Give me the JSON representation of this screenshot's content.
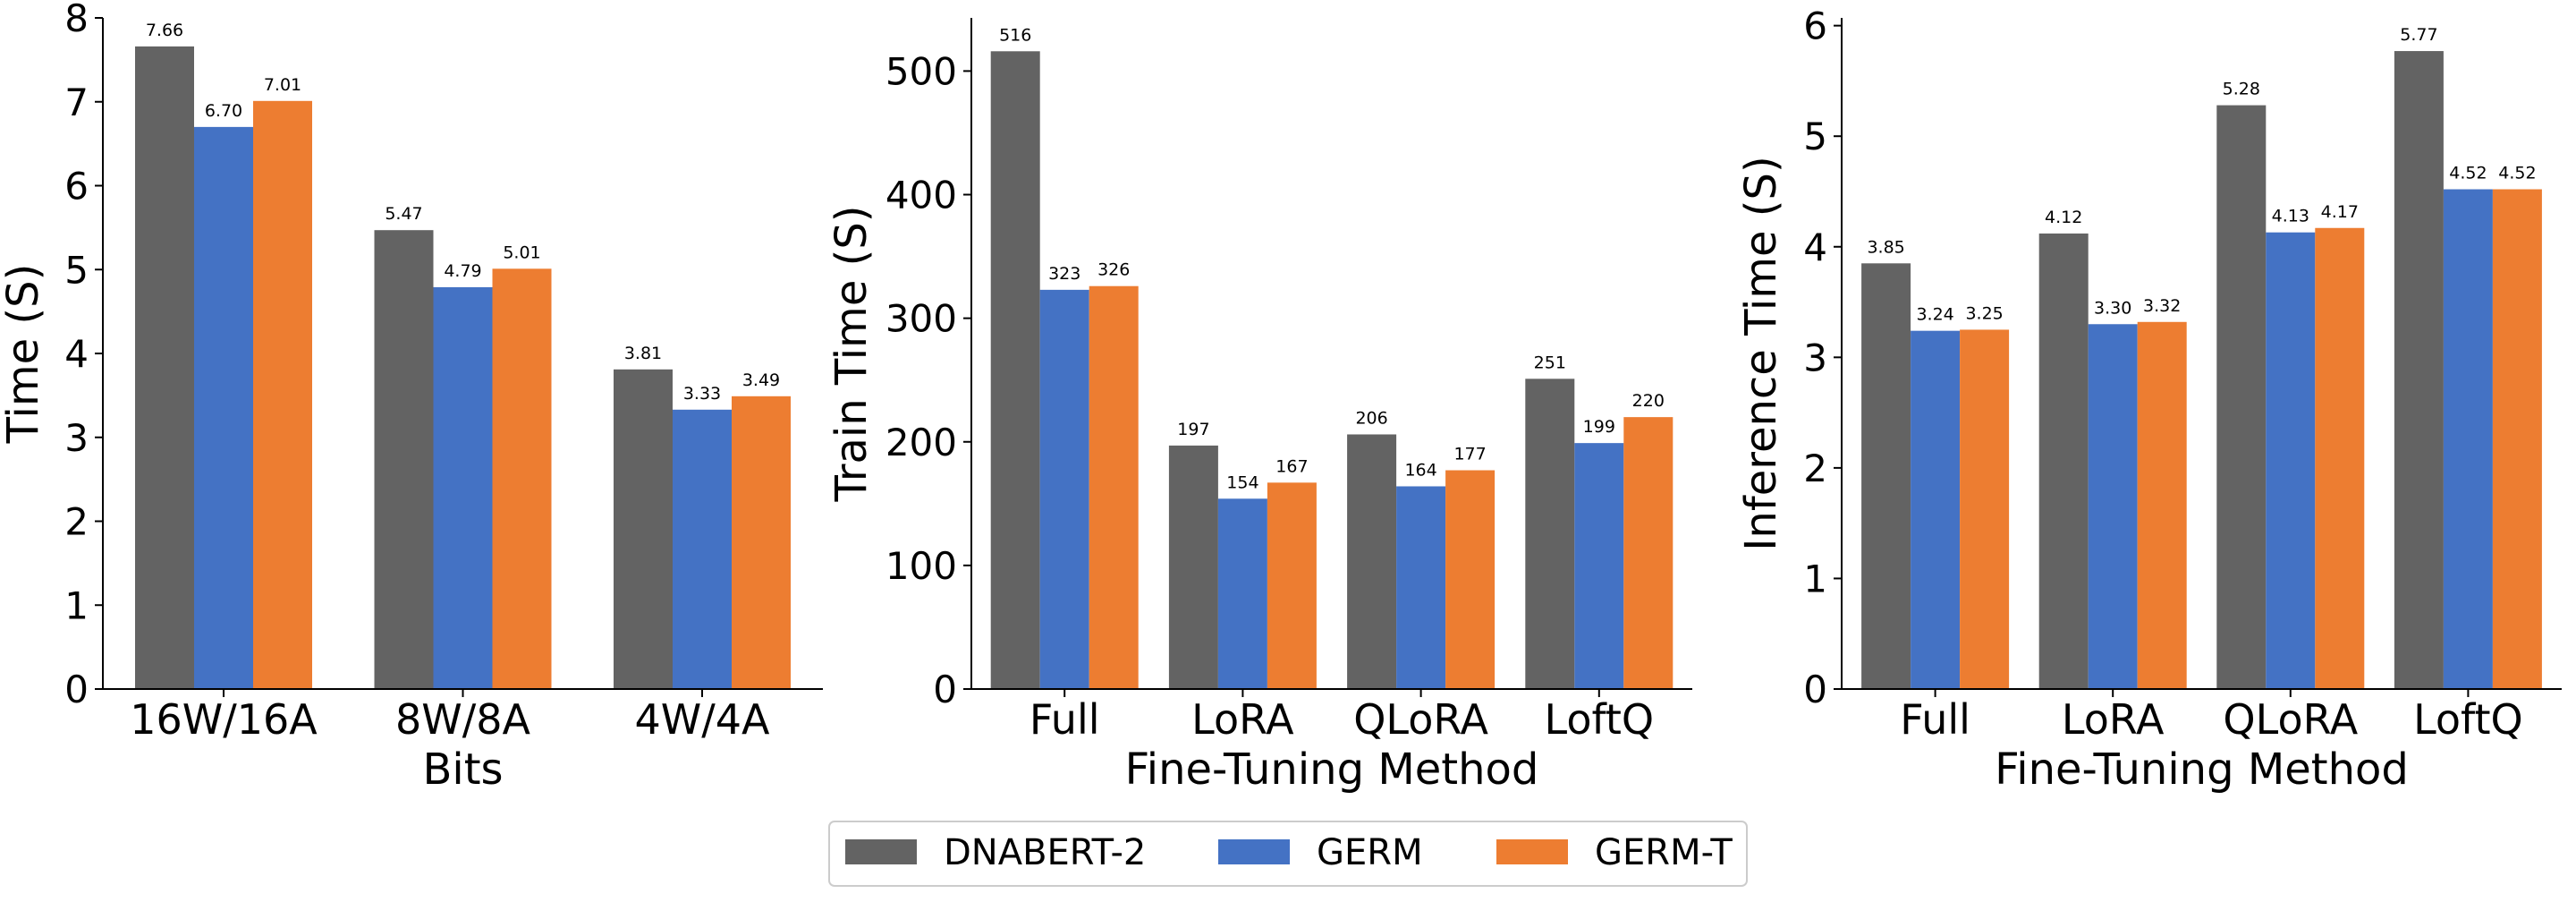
{
  "legend": {
    "placement": "bottom-center",
    "entries": [
      {
        "name": "DNABERT-2",
        "color": "#636363"
      },
      {
        "name": "GERM",
        "color": "#4472c4"
      },
      {
        "name": "GERM-T",
        "color": "#ed7d31"
      }
    ]
  },
  "chart_data": [
    {
      "type": "bar",
      "xlabel": "Bits",
      "ylabel": "Time (S)",
      "ylim": [
        0,
        8
      ],
      "yticks": [
        0,
        1,
        2,
        3,
        4,
        5,
        6,
        7,
        8
      ],
      "ytick_labels": [
        "0",
        "1",
        "2",
        "3",
        "4",
        "5",
        "6",
        "7",
        "8"
      ],
      "categories": [
        "16W/16A",
        "8W/8A",
        "4W/4A"
      ],
      "series": [
        {
          "name": "DNABERT-2",
          "values": [
            7.66,
            5.47,
            3.81
          ],
          "labels": [
            "7.66",
            "5.47",
            "3.81"
          ]
        },
        {
          "name": "GERM",
          "values": [
            6.7,
            4.79,
            3.33
          ],
          "labels": [
            "6.70",
            "4.79",
            "3.33"
          ]
        },
        {
          "name": "GERM-T",
          "values": [
            7.01,
            5.01,
            3.49
          ],
          "labels": [
            "7.01",
            "5.01",
            "3.49"
          ]
        }
      ],
      "grid": false
    },
    {
      "type": "bar",
      "xlabel": "Fine-Tuning Method",
      "ylabel": "Train Time (S)",
      "ylim": [
        0,
        543
      ],
      "yticks": [
        0,
        100,
        200,
        300,
        400,
        500
      ],
      "ytick_labels": [
        "0",
        "100",
        "200",
        "300",
        "400",
        "500"
      ],
      "categories": [
        "Full",
        "LoRA",
        "QLoRA",
        "LoftQ"
      ],
      "series": [
        {
          "name": "DNABERT-2",
          "values": [
            516,
            197,
            206,
            251
          ],
          "labels": [
            "516",
            "197",
            "206",
            "251"
          ]
        },
        {
          "name": "GERM",
          "values": [
            323,
            154,
            164,
            199
          ],
          "labels": [
            "323",
            "154",
            "164",
            "199"
          ]
        },
        {
          "name": "GERM-T",
          "values": [
            326,
            167,
            177,
            220
          ],
          "labels": [
            "326",
            "167",
            "177",
            "220"
          ]
        }
      ],
      "grid": false
    },
    {
      "type": "bar",
      "xlabel": "Fine-Tuning Method",
      "ylabel": "Inference Time (S)",
      "ylim": [
        0,
        6.07
      ],
      "yticks": [
        0,
        1,
        2,
        3,
        4,
        5,
        6
      ],
      "ytick_labels": [
        "0",
        "1",
        "2",
        "3",
        "4",
        "5",
        "6"
      ],
      "categories": [
        "Full",
        "LoRA",
        "QLoRA",
        "LoftQ"
      ],
      "series": [
        {
          "name": "DNABERT-2",
          "values": [
            3.85,
            4.12,
            5.28,
            5.77
          ],
          "labels": [
            "3.85",
            "4.12",
            "5.28",
            "5.77"
          ]
        },
        {
          "name": "GERM",
          "values": [
            3.24,
            3.3,
            4.13,
            4.52
          ],
          "labels": [
            "3.24",
            "3.30",
            "4.13",
            "4.52"
          ]
        },
        {
          "name": "GERM-T",
          "values": [
            3.25,
            3.32,
            4.17,
            4.52
          ],
          "labels": [
            "3.25",
            "3.32",
            "4.17",
            "4.52"
          ]
        }
      ],
      "grid": false
    }
  ]
}
